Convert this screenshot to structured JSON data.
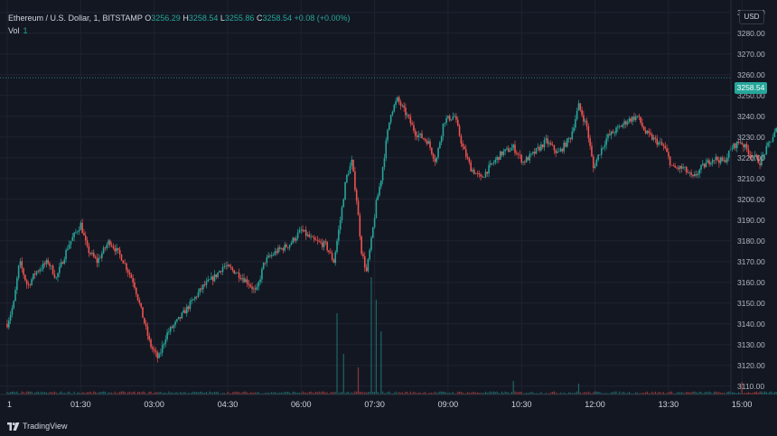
{
  "legend": {
    "symbol": "Ethereum / U.S. Dollar, 1, BITSTAMP",
    "open_label": "O",
    "open": "3256.29",
    "high_label": "H",
    "high": "3258.54",
    "low_label": "L",
    "low": "3255.86",
    "close_label": "C",
    "close": "3258.54",
    "change": "+0.08 (+0.00%)",
    "volume_label": "Vol",
    "volume": "1"
  },
  "currency": "USD",
  "price_tag": "3258.54",
  "brand": {
    "name": "TradingView",
    "icon": "tradingview-logo-icon"
  },
  "colors": {
    "up": "#26a69a",
    "down": "#ef5350",
    "background": "#131722",
    "grid": "#1f2330"
  },
  "chart_data": {
    "type": "candlestick",
    "y_ticks": [
      "3110.00",
      "3120.00",
      "3130.00",
      "3140.00",
      "3150.00",
      "3160.00",
      "3170.00",
      "3180.00",
      "3190.00",
      "3200.00",
      "3210.00",
      "3220.00",
      "3230.00",
      "3240.00",
      "3250.00",
      "3260.00",
      "3270.00",
      "3280.00",
      "3290.00"
    ],
    "ylim": [
      3106,
      3296
    ],
    "x_ticks": [
      "1",
      "01:30",
      "03:00",
      "04:30",
      "06:00",
      "07:30",
      "09:00",
      "10:30",
      "12:00",
      "13:30",
      "15:00"
    ],
    "x_tick_minutes": [
      0,
      90,
      180,
      270,
      360,
      450,
      540,
      630,
      720,
      810,
      900
    ],
    "xlim_minutes": [
      0,
      1130
    ],
    "last_price": 3258.54,
    "price_path": [
      [
        0,
        3140
      ],
      [
        8,
        3150
      ],
      [
        15,
        3170
      ],
      [
        25,
        3158
      ],
      [
        35,
        3165
      ],
      [
        50,
        3170
      ],
      [
        60,
        3162
      ],
      [
        75,
        3178
      ],
      [
        90,
        3188
      ],
      [
        98,
        3176
      ],
      [
        110,
        3170
      ],
      [
        125,
        3180
      ],
      [
        140,
        3172
      ],
      [
        155,
        3160
      ],
      [
        165,
        3145
      ],
      [
        175,
        3130
      ],
      [
        185,
        3123
      ],
      [
        195,
        3135
      ],
      [
        210,
        3142
      ],
      [
        225,
        3150
      ],
      [
        240,
        3158
      ],
      [
        255,
        3163
      ],
      [
        265,
        3168
      ],
      [
        280,
        3165
      ],
      [
        295,
        3160
      ],
      [
        305,
        3155
      ],
      [
        315,
        3170
      ],
      [
        330,
        3175
      ],
      [
        345,
        3178
      ],
      [
        360,
        3185
      ],
      [
        375,
        3180
      ],
      [
        390,
        3178
      ],
      [
        400,
        3170
      ],
      [
        408,
        3190
      ],
      [
        415,
        3210
      ],
      [
        422,
        3218
      ],
      [
        428,
        3200
      ],
      [
        434,
        3175
      ],
      [
        440,
        3165
      ],
      [
        446,
        3180
      ],
      [
        452,
        3198
      ],
      [
        458,
        3210
      ],
      [
        465,
        3230
      ],
      [
        470,
        3242
      ],
      [
        478,
        3248
      ],
      [
        490,
        3240
      ],
      [
        500,
        3232
      ],
      [
        515,
        3228
      ],
      [
        525,
        3218
      ],
      [
        535,
        3238
      ],
      [
        548,
        3240
      ],
      [
        558,
        3225
      ],
      [
        568,
        3215
      ],
      [
        580,
        3210
      ],
      [
        590,
        3215
      ],
      [
        605,
        3222
      ],
      [
        620,
        3225
      ],
      [
        632,
        3218
      ],
      [
        645,
        3222
      ],
      [
        660,
        3228
      ],
      [
        675,
        3222
      ],
      [
        690,
        3230
      ],
      [
        700,
        3245
      ],
      [
        710,
        3235
      ],
      [
        718,
        3215
      ],
      [
        725,
        3222
      ],
      [
        735,
        3230
      ],
      [
        748,
        3234
      ],
      [
        760,
        3238
      ],
      [
        772,
        3240
      ],
      [
        782,
        3232
      ],
      [
        795,
        3228
      ],
      [
        805,
        3225
      ],
      [
        815,
        3215
      ],
      [
        828,
        3215
      ],
      [
        840,
        3210
      ],
      [
        850,
        3215
      ],
      [
        865,
        3220
      ],
      [
        878,
        3218
      ],
      [
        888,
        3225
      ],
      [
        898,
        3228
      ],
      [
        910,
        3222
      ],
      [
        922,
        3218
      ],
      [
        935,
        3228
      ],
      [
        948,
        3238
      ],
      [
        960,
        3242
      ],
      [
        970,
        3248
      ],
      [
        978,
        3255
      ],
      [
        985,
        3240
      ],
      [
        995,
        3245
      ],
      [
        1005,
        3250
      ],
      [
        1015,
        3252
      ],
      [
        1025,
        3258
      ],
      [
        1035,
        3262
      ],
      [
        1042,
        3272
      ],
      [
        1050,
        3265
      ],
      [
        1058,
        3255
      ],
      [
        1065,
        3262
      ],
      [
        1075,
        3260
      ],
      [
        1085,
        3255
      ],
      [
        1095,
        3258
      ],
      [
        1100,
        3258.54
      ]
    ],
    "volume_spikes": [
      [
        405,
        90
      ],
      [
        412,
        45
      ],
      [
        430,
        30
      ],
      [
        446,
        130
      ],
      [
        452,
        105
      ],
      [
        458,
        70
      ],
      [
        620,
        15
      ],
      [
        700,
        12
      ],
      [
        900,
        14
      ],
      [
        950,
        12
      ],
      [
        965,
        25
      ],
      [
        985,
        35
      ]
    ]
  }
}
